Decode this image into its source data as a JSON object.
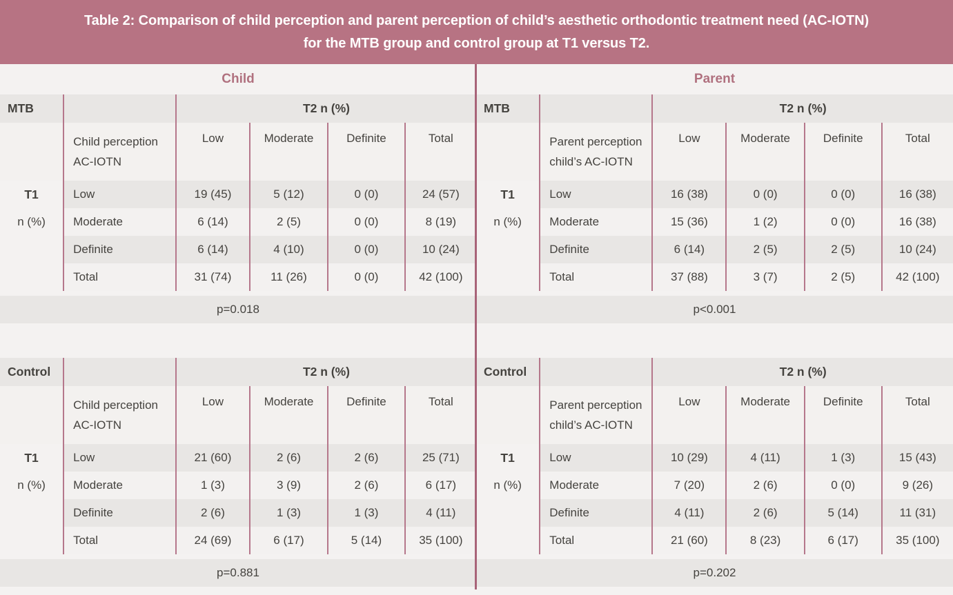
{
  "title": {
    "line1": "Table 2: Comparison of child perception and parent perception of child’s aesthetic orthodontic treatment need (AC-IOTN)",
    "line2": "for the MTB group and control group at T1 versus T2."
  },
  "colors": {
    "title_bar": "#b77383",
    "divider_line": "#a86378",
    "column_line": "#b5778b",
    "stripe_row": "#e8e6e4",
    "light_row": "#f3f1f0",
    "accent_text": "#b0717f"
  },
  "panels": [
    {
      "id": "child",
      "header": "Child",
      "tables": [
        {
          "group": "MTB",
          "span_header": "T2 n (%)",
          "perception": [
            "Child perception",
            "AC-IOTN"
          ],
          "columns": [
            "Low",
            "Moderate",
            "Definite",
            "Total"
          ],
          "axis": [
            "T1",
            "n (%)"
          ],
          "rows": [
            {
              "label": "Low",
              "values": [
                "19 (45)",
                "5 (12)",
                "0 (0)",
                "24 (57)"
              ]
            },
            {
              "label": "Moderate",
              "values": [
                "6 (14)",
                "2 (5)",
                "0 (0)",
                "8 (19)"
              ]
            },
            {
              "label": "Definite",
              "values": [
                "6 (14)",
                "4 (10)",
                "0 (0)",
                "10 (24)"
              ]
            },
            {
              "label": "Total",
              "values": [
                "31 (74)",
                "11 (26)",
                "0 (0)",
                "42 (100)"
              ]
            }
          ],
          "p_value": "p=0.018"
        },
        {
          "group": "Control",
          "span_header": "T2 n (%)",
          "perception": [
            "Child perception",
            "AC-IOTN"
          ],
          "columns": [
            "Low",
            "Moderate",
            "Definite",
            "Total"
          ],
          "axis": [
            "T1",
            "n (%)"
          ],
          "rows": [
            {
              "label": "Low",
              "values": [
                "21 (60)",
                "2 (6)",
                "2 (6)",
                "25 (71)"
              ]
            },
            {
              "label": "Moderate",
              "values": [
                "1 (3)",
                "3 (9)",
                "2 (6)",
                "6 (17)"
              ]
            },
            {
              "label": "Definite",
              "values": [
                "2 (6)",
                "1 (3)",
                "1 (3)",
                "4 (11)"
              ]
            },
            {
              "label": "Total",
              "values": [
                "24 (69)",
                "6 (17)",
                "5 (14)",
                "35 (100)"
              ]
            }
          ],
          "p_value": "p=0.881"
        }
      ]
    },
    {
      "id": "parent",
      "header": "Parent",
      "tables": [
        {
          "group": "MTB",
          "span_header": "T2 n (%)",
          "perception": [
            "Parent perception",
            "child’s AC-IOTN"
          ],
          "columns": [
            "Low",
            "Moderate",
            "Definite",
            "Total"
          ],
          "axis": [
            "T1",
            "n (%)"
          ],
          "rows": [
            {
              "label": "Low",
              "values": [
                "16 (38)",
                "0 (0)",
                "0 (0)",
                "16 (38)"
              ]
            },
            {
              "label": "Moderate",
              "values": [
                "15 (36)",
                "1 (2)",
                "0 (0)",
                "16 (38)"
              ]
            },
            {
              "label": "Definite",
              "values": [
                "6 (14)",
                "2 (5)",
                "2 (5)",
                "10 (24)"
              ]
            },
            {
              "label": "Total",
              "values": [
                "37 (88)",
                "3 (7)",
                "2 (5)",
                "42 (100)"
              ]
            }
          ],
          "p_value": "p<0.001"
        },
        {
          "group": "Control",
          "span_header": "T2 n (%)",
          "perception": [
            "Parent perception",
            "child’s AC-IOTN"
          ],
          "columns": [
            "Low",
            "Moderate",
            "Definite",
            "Total"
          ],
          "axis": [
            "T1",
            "n (%)"
          ],
          "rows": [
            {
              "label": "Low",
              "values": [
                "10 (29)",
                "4 (11)",
                "1 (3)",
                "15 (43)"
              ]
            },
            {
              "label": "Moderate",
              "values": [
                "7 (20)",
                "2 (6)",
                "0 (0)",
                "9 (26)"
              ]
            },
            {
              "label": "Definite",
              "values": [
                "4 (11)",
                "2 (6)",
                "5 (14)",
                "11 (31)"
              ]
            },
            {
              "label": "Total",
              "values": [
                "21 (60)",
                "8 (23)",
                "6 (17)",
                "35 (100)"
              ]
            }
          ],
          "p_value": "p=0.202"
        }
      ]
    }
  ]
}
